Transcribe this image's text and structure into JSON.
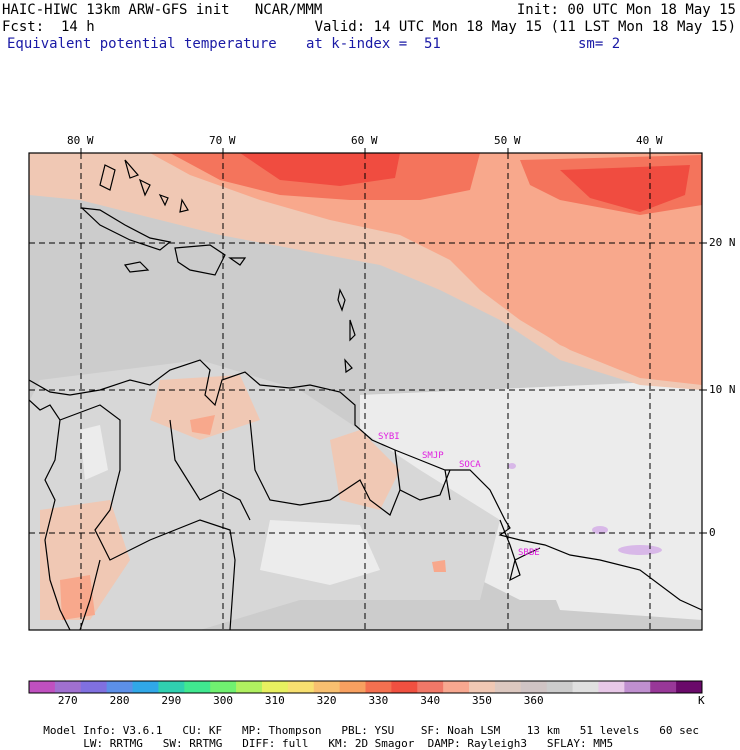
{
  "header": {
    "model_line": "HAIC-HIWC 13km ARW-GFS init   NCAR/MMM",
    "init": "Init: 00 UTC Mon 18 May 15",
    "fcst": "Fcst:  14 h",
    "valid": "Valid: 14 UTC Mon 18 May 15 (11 LST Mon 18 May 15)",
    "field": "Equivalent potential temperature",
    "level": "at k-index =  51",
    "smoothing": "sm= 2"
  },
  "map": {
    "lon_labels": [
      "80 W",
      "70 W",
      "60 W",
      "50 W",
      "40 W"
    ],
    "lat_labels": [
      "20 N",
      "10 N",
      "0"
    ],
    "stations": [
      "SYBI",
      "SMJP",
      "SOCA",
      "SBBE"
    ],
    "colors": {
      "background": "#cccccc",
      "land": "#d7d7d7",
      "light": "#ececec",
      "warm1": "#f0c8b4",
      "warm2": "#f8a88c",
      "warm3": "#f4745c",
      "hot": "#f04c40",
      "lilac": "#d8b8e8",
      "station": "#e020e0"
    }
  },
  "colorbar": {
    "colors": [
      "#c050c0",
      "#a070d0",
      "#8070e0",
      "#5c90e8",
      "#30a8e8",
      "#30d0b0",
      "#40e890",
      "#70f070",
      "#b0f060",
      "#e8f060",
      "#f8e070",
      "#f8c070",
      "#f8a060",
      "#f47050",
      "#f05040",
      "#f07868",
      "#f8a890",
      "#f0c8b4",
      "#dcc8c0",
      "#d0c4c4",
      "#cccccc",
      "#e0e0e0",
      "#e8c8e8",
      "#c090d0",
      "#983898",
      "#6a0a6a"
    ],
    "tick_labels": [
      "270",
      "280",
      "290",
      "300",
      "310",
      "320",
      "330",
      "340",
      "350",
      "360"
    ],
    "unit": "K"
  },
  "footer": {
    "line1": [
      "Model Info: V3.6.1",
      "CU: KF",
      "MP: Thompson",
      "PBL: YSU",
      "SF: Noah LSM",
      "13 km",
      "51 levels",
      "60 sec"
    ],
    "line2": [
      "LW: RRTMG",
      "SW: RRTMG",
      "DIFF: full",
      "KM: 2D Smagor",
      "DAMP: Rayleigh3",
      "SFLAY: MM5"
    ]
  }
}
